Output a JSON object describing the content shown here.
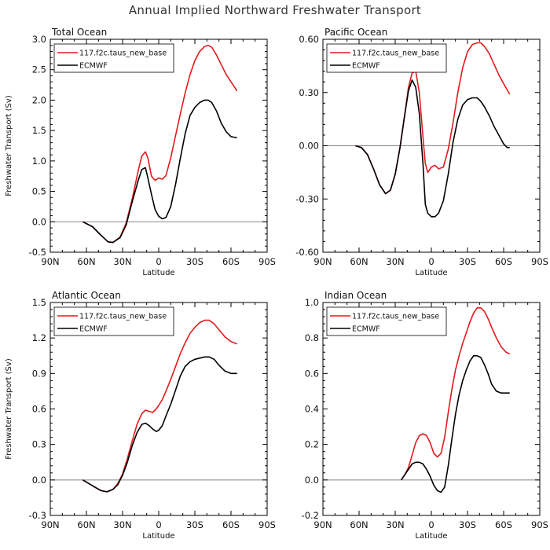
{
  "title": "Annual Implied Northward Freshwater Transport",
  "colors": {
    "model": "#e31a1c",
    "obs": "#000000",
    "zero": "#888888"
  },
  "chart_data": [
    {
      "type": "line",
      "title": "Total Ocean",
      "xlabel": "Latitude",
      "ylabel": "Freshwater Transport (Sv)",
      "xlim": [
        -90,
        90
      ],
      "ylim": [
        -0.5,
        3.0
      ],
      "xticks": [
        -90,
        -60,
        -30,
        0,
        30,
        60,
        90
      ],
      "xtick_labels": [
        "90N",
        "60N",
        "30N",
        "0",
        "30S",
        "60S",
        "90S"
      ],
      "yticks": [
        -0.5,
        0.0,
        0.5,
        1.0,
        1.5,
        2.0,
        2.5,
        3.0
      ],
      "ytick_labels": [
        "-0.5",
        "0.0",
        "0.5",
        "1.0",
        "1.5",
        "2.0",
        "2.5",
        "3.0"
      ],
      "legend": "top-left",
      "series": [
        {
          "name": "117.f2c.taus_new_base",
          "color": "#e31a1c",
          "x": [
            -63,
            -55,
            -48,
            -42,
            -38,
            -32,
            -27,
            -22,
            -17,
            -14,
            -11,
            -9,
            -6,
            -3,
            0,
            3,
            6,
            10,
            14,
            18,
            22,
            26,
            30,
            34,
            38,
            41,
            44,
            48,
            52,
            56,
            60,
            65
          ],
          "y": [
            0.0,
            -0.08,
            -0.22,
            -0.33,
            -0.34,
            -0.25,
            -0.02,
            0.38,
            0.84,
            1.08,
            1.15,
            1.05,
            0.75,
            0.68,
            0.72,
            0.7,
            0.76,
            1.05,
            1.42,
            1.78,
            2.12,
            2.42,
            2.65,
            2.8,
            2.88,
            2.9,
            2.87,
            2.74,
            2.58,
            2.42,
            2.3,
            2.15
          ]
        },
        {
          "name": "ECMWF",
          "color": "#000000",
          "x": [
            -63,
            -55,
            -48,
            -42,
            -38,
            -32,
            -27,
            -22,
            -17,
            -14,
            -11,
            -9,
            -6,
            -3,
            0,
            3,
            6,
            10,
            14,
            18,
            22,
            26,
            30,
            34,
            38,
            41,
            44,
            48,
            52,
            56,
            60,
            65
          ],
          "y": [
            0.0,
            -0.08,
            -0.22,
            -0.33,
            -0.34,
            -0.26,
            -0.05,
            0.33,
            0.68,
            0.86,
            0.89,
            0.72,
            0.45,
            0.2,
            0.09,
            0.05,
            0.07,
            0.25,
            0.62,
            1.05,
            1.45,
            1.75,
            1.88,
            1.96,
            2.0,
            2.0,
            1.96,
            1.82,
            1.62,
            1.48,
            1.4,
            1.38
          ]
        }
      ]
    },
    {
      "type": "line",
      "title": "Pacific Ocean",
      "xlabel": "Latitude",
      "ylabel": "",
      "xlim": [
        -90,
        90
      ],
      "ylim": [
        -0.6,
        0.6
      ],
      "xticks": [
        -90,
        -60,
        -30,
        0,
        30,
        60,
        90
      ],
      "xtick_labels": [
        "90N",
        "60N",
        "30N",
        "0",
        "30S",
        "60S",
        "90S"
      ],
      "yticks": [
        -0.6,
        -0.3,
        0.0,
        0.3,
        0.6
      ],
      "ytick_labels": [
        "-0.60",
        "-0.30",
        "0.00",
        "0.30",
        "0.60"
      ],
      "legend": "top-left",
      "series": [
        {
          "name": "117.f2c.taus_new_base",
          "color": "#e31a1c",
          "x": [
            -63,
            -58,
            -53,
            -48,
            -43,
            -38,
            -34,
            -30,
            -26,
            -22,
            -19,
            -16,
            -13,
            -10,
            -7,
            -5,
            -3,
            0,
            3,
            6,
            10,
            14,
            18,
            22,
            26,
            30,
            34,
            38,
            41,
            44,
            48,
            52,
            56,
            60,
            65
          ],
          "y": [
            0.0,
            -0.01,
            -0.05,
            -0.13,
            -0.22,
            -0.27,
            -0.25,
            -0.16,
            -0.01,
            0.18,
            0.33,
            0.41,
            0.42,
            0.3,
            0.05,
            -0.1,
            -0.15,
            -0.12,
            -0.11,
            -0.13,
            -0.12,
            -0.02,
            0.13,
            0.3,
            0.44,
            0.53,
            0.57,
            0.58,
            0.58,
            0.56,
            0.52,
            0.46,
            0.4,
            0.35,
            0.29
          ]
        },
        {
          "name": "ECMWF",
          "color": "#000000",
          "x": [
            -63,
            -58,
            -53,
            -48,
            -43,
            -38,
            -34,
            -30,
            -26,
            -22,
            -19,
            -16,
            -13,
            -10,
            -7,
            -5,
            -3,
            0,
            3,
            6,
            10,
            14,
            18,
            22,
            26,
            30,
            34,
            38,
            41,
            44,
            48,
            52,
            56,
            60,
            63,
            65
          ],
          "y": [
            0.0,
            -0.01,
            -0.05,
            -0.13,
            -0.22,
            -0.27,
            -0.25,
            -0.16,
            -0.01,
            0.18,
            0.31,
            0.37,
            0.33,
            0.18,
            -0.1,
            -0.33,
            -0.38,
            -0.4,
            -0.4,
            -0.38,
            -0.31,
            -0.16,
            0.02,
            0.15,
            0.23,
            0.26,
            0.27,
            0.27,
            0.25,
            0.22,
            0.17,
            0.11,
            0.06,
            0.01,
            -0.01,
            -0.01
          ]
        }
      ]
    },
    {
      "type": "line",
      "title": "Atlantic Ocean",
      "xlabel": "Latitude",
      "ylabel": "Freshwater Transport (Sv)",
      "xlim": [
        -90,
        90
      ],
      "ylim": [
        -0.3,
        1.5
      ],
      "xticks": [
        -90,
        -60,
        -30,
        0,
        30,
        60,
        90
      ],
      "xtick_labels": [
        "90N",
        "60N",
        "30N",
        "0",
        "30S",
        "60S",
        "90S"
      ],
      "yticks": [
        -0.3,
        0.0,
        0.3,
        0.6,
        0.9,
        1.2,
        1.5
      ],
      "ytick_labels": [
        "-0.3",
        "0.0",
        "0.3",
        "0.6",
        "0.9",
        "1.2",
        "1.5"
      ],
      "legend": "top-left",
      "series": [
        {
          "name": "117.f2c.taus_new_base",
          "color": "#e31a1c",
          "x": [
            -63,
            -58,
            -53,
            -48,
            -43,
            -38,
            -34,
            -30,
            -26,
            -22,
            -18,
            -14,
            -11,
            -8,
            -5,
            -2,
            0,
            3,
            6,
            10,
            14,
            18,
            22,
            26,
            30,
            34,
            38,
            42,
            46,
            50,
            55,
            60,
            65
          ],
          "y": [
            0.0,
            -0.03,
            -0.06,
            -0.09,
            -0.1,
            -0.08,
            -0.03,
            0.05,
            0.18,
            0.33,
            0.47,
            0.56,
            0.59,
            0.58,
            0.57,
            0.6,
            0.63,
            0.68,
            0.75,
            0.85,
            0.96,
            1.07,
            1.16,
            1.24,
            1.29,
            1.33,
            1.35,
            1.35,
            1.32,
            1.27,
            1.21,
            1.17,
            1.15
          ]
        },
        {
          "name": "ECMWF",
          "color": "#000000",
          "x": [
            -63,
            -58,
            -53,
            -48,
            -43,
            -38,
            -34,
            -30,
            -26,
            -22,
            -18,
            -14,
            -11,
            -8,
            -5,
            -2,
            0,
            3,
            6,
            10,
            14,
            18,
            22,
            26,
            30,
            34,
            38,
            42,
            46,
            50,
            55,
            60,
            65
          ],
          "y": [
            0.0,
            -0.03,
            -0.06,
            -0.09,
            -0.1,
            -0.08,
            -0.04,
            0.04,
            0.15,
            0.29,
            0.4,
            0.47,
            0.48,
            0.46,
            0.43,
            0.41,
            0.42,
            0.46,
            0.54,
            0.64,
            0.76,
            0.88,
            0.96,
            1.0,
            1.02,
            1.03,
            1.04,
            1.04,
            1.02,
            0.97,
            0.92,
            0.9,
            0.9
          ]
        }
      ]
    },
    {
      "type": "line",
      "title": "Indian Ocean",
      "xlabel": "Latitude",
      "ylabel": "",
      "xlim": [
        -90,
        90
      ],
      "ylim": [
        -0.2,
        1.0
      ],
      "xticks": [
        -90,
        -60,
        -30,
        0,
        30,
        60,
        90
      ],
      "xtick_labels": [
        "90N",
        "60N",
        "30N",
        "0",
        "30S",
        "60S",
        "90S"
      ],
      "yticks": [
        -0.2,
        0.0,
        0.2,
        0.4,
        0.6,
        0.8,
        1.0
      ],
      "ytick_labels": [
        "-0.2",
        "0.0",
        "0.2",
        "0.4",
        "0.6",
        "0.8",
        "1.0"
      ],
      "legend": "top-left",
      "series": [
        {
          "name": "117.f2c.taus_new_base",
          "color": "#e31a1c",
          "x": [
            -25,
            -22,
            -19,
            -16,
            -13,
            -10,
            -7,
            -4,
            -1,
            2,
            5,
            8,
            11,
            14,
            17,
            20,
            23,
            26,
            29,
            32,
            35,
            38,
            41,
            44,
            47,
            50,
            54,
            58,
            62,
            65
          ],
          "y": [
            0.0,
            0.03,
            0.07,
            0.14,
            0.21,
            0.25,
            0.26,
            0.25,
            0.21,
            0.15,
            0.13,
            0.15,
            0.24,
            0.38,
            0.51,
            0.62,
            0.7,
            0.77,
            0.83,
            0.89,
            0.94,
            0.97,
            0.97,
            0.95,
            0.91,
            0.86,
            0.8,
            0.75,
            0.72,
            0.71
          ]
        },
        {
          "name": "ECMWF",
          "color": "#000000",
          "x": [
            -25,
            -22,
            -19,
            -16,
            -13,
            -10,
            -7,
            -4,
            -1,
            2,
            5,
            8,
            11,
            14,
            17,
            20,
            23,
            26,
            29,
            32,
            35,
            38,
            41,
            44,
            47,
            50,
            54,
            58,
            62,
            65
          ],
          "y": [
            0.0,
            0.03,
            0.06,
            0.09,
            0.1,
            0.1,
            0.09,
            0.06,
            0.02,
            -0.03,
            -0.06,
            -0.07,
            -0.04,
            0.08,
            0.23,
            0.37,
            0.48,
            0.56,
            0.62,
            0.67,
            0.7,
            0.7,
            0.69,
            0.65,
            0.6,
            0.54,
            0.5,
            0.49,
            0.49,
            0.49
          ]
        }
      ]
    }
  ]
}
